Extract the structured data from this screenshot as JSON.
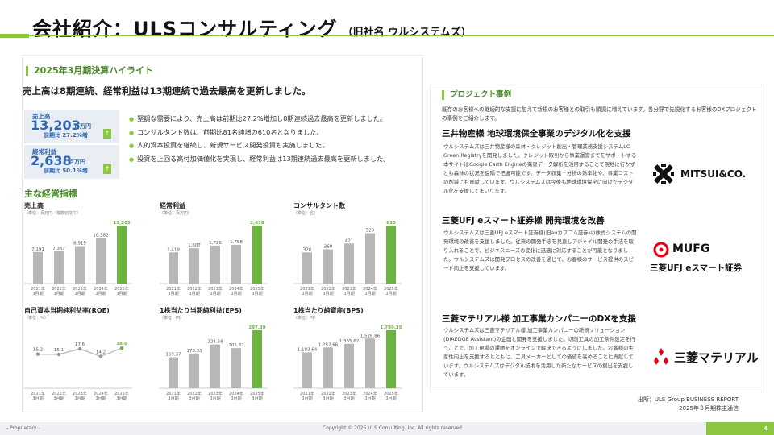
{
  "header": {
    "title": "会社紹介：ULSコンサルティング",
    "subtitle": "（旧社名 ウルシステムズ）"
  },
  "results": {
    "section_title": "2025年3月期決算ハイライト",
    "lead": "売上高は8期連続、経常利益は13期連続で過去最高を更新しました。",
    "kpis": [
      {
        "label": "売上高",
        "value": "13,203",
        "unit": "百万円",
        "sub": "前期比 27.2%増",
        "arrow": "↑"
      },
      {
        "label": "経常利益",
        "value": "2,638",
        "unit": "百万円",
        "sub": "前期比 50.1%増",
        "arrow": "↑"
      }
    ],
    "bullets": [
      "堅調な需要により、売上高は前期比27.2%増加し8期連続過去最高を更新しました。",
      "コンサルタント数は、前期比81名純増の610名となりました。",
      "人的資本投資を継続し、新規サービス開発投資も実施しました。",
      "投資を上回る高付加価値化を実現し、経常利益は13期連続過去最高を更新しました。"
    ],
    "indicators_title": "主な経営指標"
  },
  "chart_data": [
    {
      "type": "bar",
      "title": "売上高",
      "unit": "（単位：百万円／端数切捨て）",
      "categories": [
        "2021年3月期",
        "2022年3月期",
        "2023年3月期",
        "2024年3月期",
        "2025年3月期"
      ],
      "values": [
        7191,
        7367,
        8515,
        10382,
        13203
      ],
      "labels": [
        "7,191",
        "7,367",
        "8,515",
        "10,382",
        "13,203"
      ],
      "ylim": [
        0,
        13203
      ]
    },
    {
      "type": "bar",
      "title": "経常利益",
      "unit": "（単位：百万円）",
      "categories": [
        "2021年3月期",
        "2022年3月期",
        "2023年3月期",
        "2024年3月期",
        "2025年3月期"
      ],
      "values": [
        1419,
        1607,
        1726,
        1758,
        2638
      ],
      "labels": [
        "1,419",
        "1,607",
        "1,726",
        "1,758",
        "2,638"
      ],
      "ylim": [
        0,
        2638
      ]
    },
    {
      "type": "bar",
      "title": "コンサルタント数",
      "unit": "（単位：名）",
      "categories": [
        "2021年3月期",
        "2022年3月期",
        "2023年3月期",
        "2024年3月期",
        "2025年3月期"
      ],
      "values": [
        328,
        360,
        421,
        529,
        610
      ],
      "labels": [
        "328",
        "360",
        "421",
        "529",
        "610"
      ],
      "ylim": [
        0,
        610
      ]
    },
    {
      "type": "line",
      "title": "自己資本当期純利益率(ROE)",
      "unit": "（単位：％）",
      "categories": [
        "2021年3月期",
        "2022年3月期",
        "2023年3月期",
        "2024年3月期",
        "2025年3月期"
      ],
      "values": [
        15.2,
        15.1,
        17.6,
        14.2,
        18.0
      ],
      "labels": [
        "15.2",
        "15.1",
        "17.6",
        "14.2",
        "18.0"
      ],
      "ylim": [
        0,
        22
      ]
    },
    {
      "type": "bar",
      "title": "1株当たり当期純利益(EPS)",
      "unit": "（単位：円）",
      "categories": [
        "2021年3月期",
        "2022年3月期",
        "2023年3月期",
        "2024年3月期",
        "2025年3月期"
      ],
      "values": [
        159.37,
        178.33,
        224.58,
        205.82,
        297.39
      ],
      "labels": [
        "159.37",
        "178.33",
        "224.58",
        "205.82",
        "297.39"
      ],
      "ylim": [
        0,
        297.39
      ]
    },
    {
      "type": "bar",
      "title": "1株当たり純資産(BPS)",
      "unit": "（単位：円）",
      "categories": [
        "2021年3月期",
        "2022年3月期",
        "2023年3月期",
        "2024年3月期",
        "2025年3月期"
      ],
      "values": [
        1103.64,
        1252.66,
        1365.62,
        1526.86,
        1780.35
      ],
      "labels": [
        "1,103.64",
        "1,252.66",
        "1,365.62",
        "1,526.86",
        "1,780.35"
      ],
      "ylim": [
        0,
        1780.35
      ]
    }
  ],
  "projects": {
    "section_title": "プロジェクト事例",
    "intro": "既存のお客様への継続的な支援に加えて新規のお客様との取引も順調に増えています。各分野で先鋭化するお客様のDXプロジェクトの事例をご紹介します。",
    "cases": [
      {
        "title": "三井物産様 地球環境保全事業のデジタル化を支援",
        "body": "ウルシステムズは三井物産様の森林・クレジット創出・管理業務支援システムLC-Green Registryを開発しました。クレジット取引から事業運営までをサポートする本サイトはGoogle Earth Engineの衛星データ解析を活用することで現地に行かずとも森林の状況を遠隔で把握可能です。データ収集・分析の効率化や、事業コストの削減にも貢献しています。ウルシステムズは今後も地球環境保全に向けたデジタル化を支援してまいります。",
        "logo": "MITSUI&CO."
      },
      {
        "title": "三菱UFJ eスマート証券様 開発環境を改善",
        "body": "ウルシステムズは三菱UFJ eスマート証券様(旧auカブコム証券)の株式システムの開発環境の改善を支援しました。従来の開発手法を見直しアジャイル開発の手法を取り入れることで、ビジネスニーズの変化に迅速に対応することが可能となりました。ウルシステムズは開発プロセスの改善を通じて、お客様のサービス提供のスピード向上を支援しています。",
        "logo_main": "MUFG",
        "logo_sub": "三菱UFJ eスマート証券"
      },
      {
        "title": "三菱マテリアル様 加工事業カンパニーのDXを支援",
        "body": "ウルシステムズは三菱マテリアル様 加工事業カンパニーの新規ソリューション(DIAEDGE Assistant)の企画と開発を支援しました。切削工具の加工条件設定を行うことで、加工現場の課題をオンラインで解決できるようにしました。お客様の生産性向上を支援するとともに、工具メーカーとしての価値を高めることに貢献しています。ウルシステムズはデジタル技術を活用した新たなサービスの創出を支援しています。",
        "logo": "三菱マテリアル"
      }
    ]
  },
  "source": {
    "line1": "出所：ULS Group BUSINESS REPORT",
    "line2": "2025年３月期株主通信"
  },
  "footer": {
    "proprietary": "- Proprietary -",
    "copyright": "Copyright © 2025 ULS Consulting, Inc.  All rights reserved.",
    "page": "4"
  },
  "colors": {
    "accent": "#8cc63f",
    "bar_gray": "#b7b7b7",
    "bar_highlight": "#6db33f",
    "kpi_blue": "#2f66b0"
  }
}
